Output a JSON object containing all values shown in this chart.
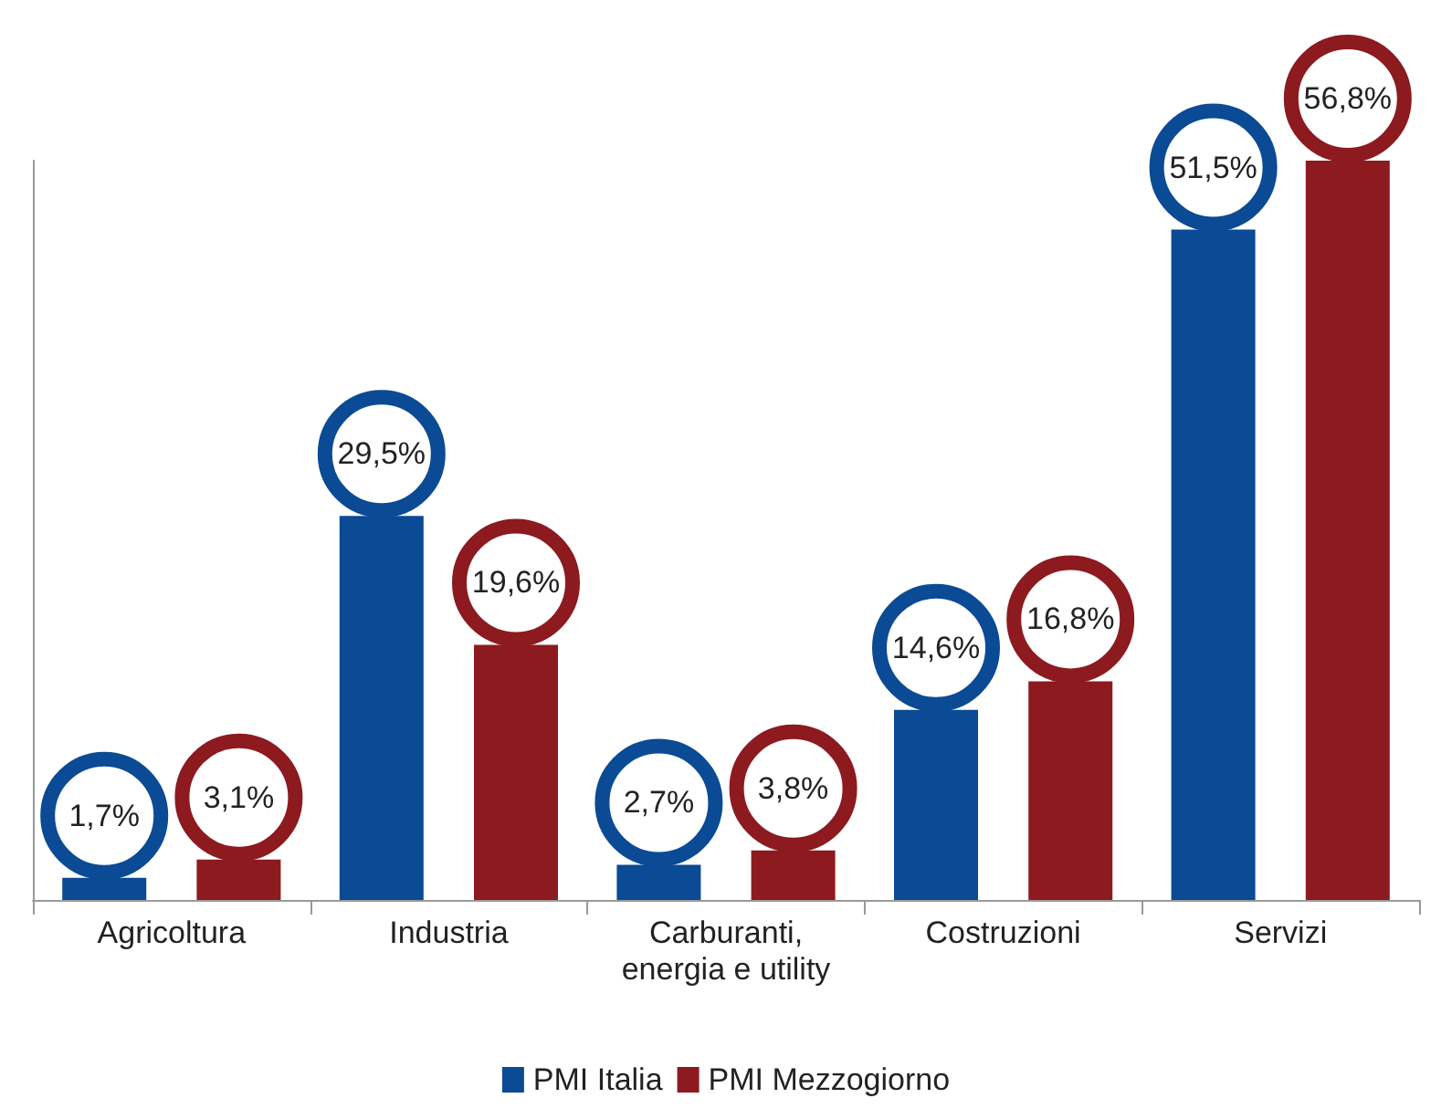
{
  "chart_data": {
    "type": "bar",
    "categories": [
      "Agricoltura",
      "Industria",
      "Carburanti,\nenergia e utility",
      "Costruzioni",
      "Servizi"
    ],
    "series": [
      {
        "name": "PMI Italia",
        "color": "#0b4a94",
        "values": [
          1.7,
          29.5,
          2.7,
          14.6,
          51.5
        ],
        "value_labels": [
          "1,7%",
          "29,5%",
          "2,7%",
          "14,6%",
          "51,5%"
        ]
      },
      {
        "name": "PMI Mezzogiorno",
        "color": "#8c1a1f",
        "values": [
          3.1,
          19.6,
          3.8,
          16.8,
          56.8
        ],
        "value_labels": [
          "3,1%",
          "19,6%",
          "3,8%",
          "16,8%",
          "56,8%"
        ]
      }
    ],
    "legend": "bottom",
    "tick_labels": "x",
    "grid": false
  }
}
